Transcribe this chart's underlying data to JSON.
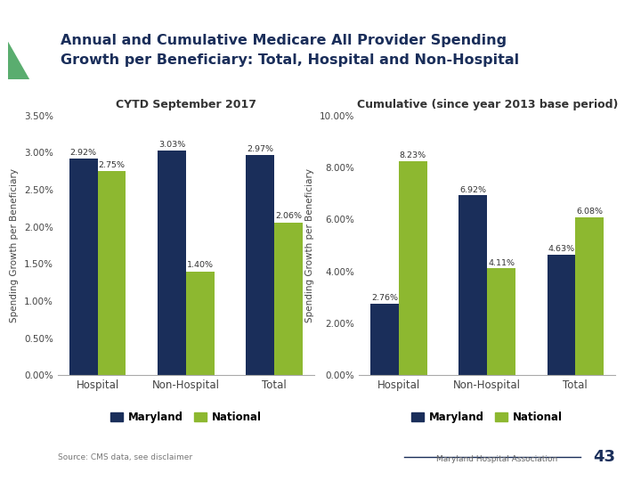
{
  "title_line1": "Annual and Cumulative Medicare All Provider Spending",
  "title_line2": "Growth per Beneficiary: Total, Hospital and Non-Hospital",
  "title_color": "#1a2e5a",
  "background_color": "#ffffff",
  "left_chart": {
    "subtitle": "CYTD September 2017",
    "categories": [
      "Hospital",
      "Non-Hospital",
      "Total"
    ],
    "maryland_values": [
      2.92,
      3.03,
      2.97
    ],
    "national_values": [
      2.75,
      1.4,
      2.06
    ],
    "ylabel": "Spending Growth per Beneficiary",
    "ylim": [
      0,
      3.5
    ],
    "yticks": [
      0.0,
      0.5,
      1.0,
      1.5,
      2.0,
      2.5,
      3.0,
      3.5
    ],
    "ytick_labels": [
      "0.00%",
      "0.50%",
      "1.00%",
      "1.50%",
      "2.00%",
      "2.50%",
      "3.00%",
      "3.50%"
    ]
  },
  "right_chart": {
    "subtitle": "Cumulative (since year 2013 base period)",
    "categories": [
      "Hospital",
      "Non-Hospital",
      "Total"
    ],
    "maryland_values": [
      2.76,
      6.92,
      4.63
    ],
    "national_values": [
      8.23,
      4.11,
      6.08
    ],
    "ylabel": "Spending Growth per Beneficiary",
    "ylim": [
      0,
      10
    ],
    "yticks": [
      0.0,
      2.0,
      4.0,
      6.0,
      8.0,
      10.0
    ],
    "ytick_labels": [
      "0.00%",
      "2.00%",
      "4.00%",
      "6.00%",
      "8.00%",
      "10.00%"
    ]
  },
  "maryland_color": "#1a2e5a",
  "national_color": "#8db830",
  "bar_width": 0.32,
  "legend_labels": [
    "Maryland",
    "National"
  ],
  "source_text": "Source: CMS data, see disclaimer",
  "page_number": "43",
  "accent_teal": "#3a9e8c",
  "accent_green": "#5aad6f",
  "header_line_color": "#1a2e5a"
}
